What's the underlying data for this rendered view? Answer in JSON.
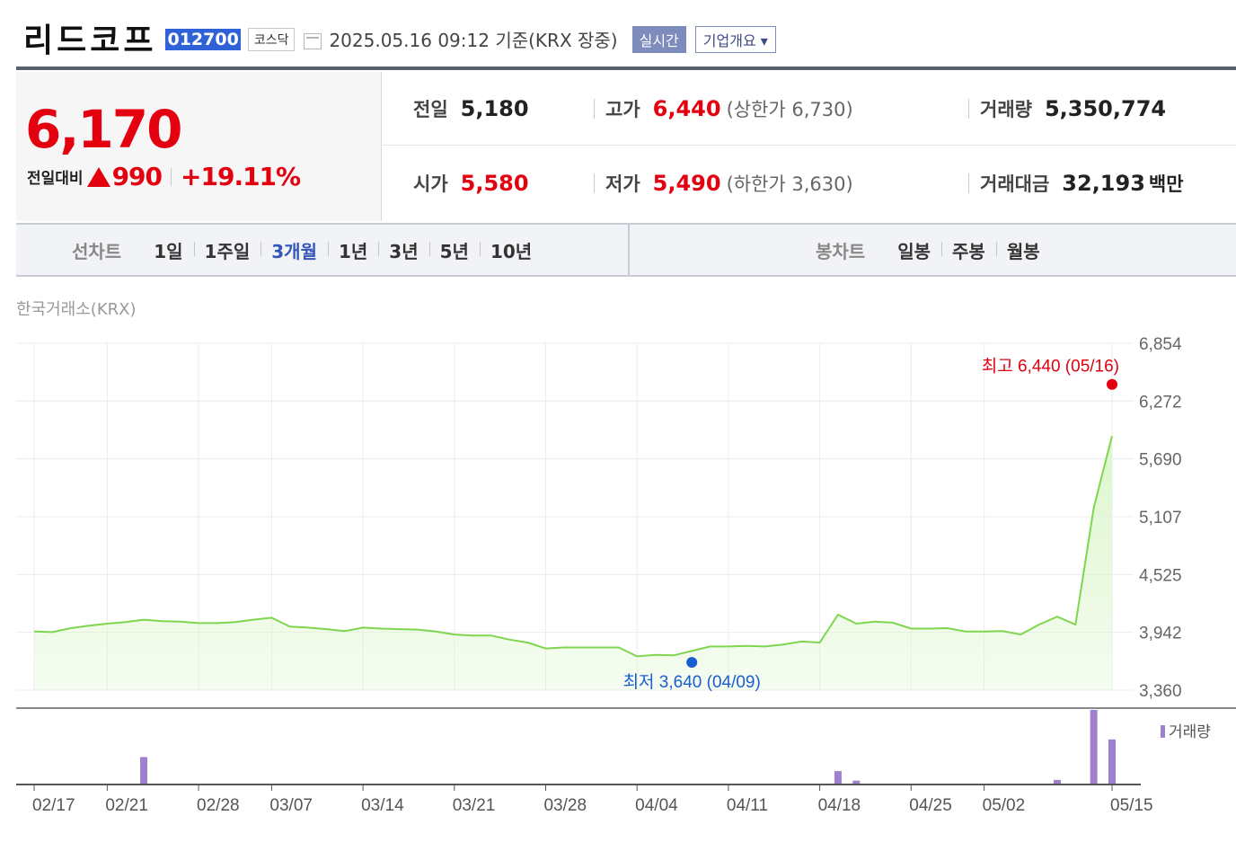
{
  "header": {
    "company": "리드코프",
    "code": "012700",
    "market": "코스닥",
    "datetime": "2025.05.16 09:12",
    "basis": "기준(KRX 장중)",
    "realtime_button": "실시간",
    "overview_button": "기업개요 ▾",
    "calendar_icon": "calendar-icon"
  },
  "price": {
    "current": "6,170",
    "change_label": "전일대비",
    "change_amount": "990",
    "change_pct": "+19.11%",
    "direction": "up",
    "color": "#e3000f"
  },
  "stats": {
    "prev_label": "전일",
    "prev": "5,180",
    "open_label": "시가",
    "open": "5,580",
    "high_label": "고가",
    "high": "6,440",
    "upper_limit": "(상한가 6,730)",
    "low_label": "저가",
    "low": "5,490",
    "lower_limit": "(하한가 3,630)",
    "volume_label": "거래량",
    "volume": "5,350,774",
    "value_label": "거래대금",
    "value": "32,193",
    "value_unit": "백만"
  },
  "tabs": {
    "line_title": "선차트",
    "line": [
      "1일",
      "1주일",
      "3개월",
      "1년",
      "3년",
      "5년",
      "10년"
    ],
    "line_active": "3개월",
    "candle_title": "봉차트",
    "candle": [
      "일봉",
      "주봉",
      "월봉"
    ]
  },
  "chart_source": "한국거래소(KRX)",
  "chart_data": {
    "type": "area",
    "ylim": [
      3360,
      6854
    ],
    "yticks": [
      "6,854",
      "6,272",
      "5,690",
      "5,107",
      "4,525",
      "3,942",
      "3,360"
    ],
    "xtick_labels": [
      "02/17",
      "02/21",
      "02/28",
      "03/07",
      "03/14",
      "03/21",
      "03/28",
      "04/04",
      "04/11",
      "04/18",
      "04/25",
      "05/02",
      "05/15"
    ],
    "xtick_index": [
      0,
      4,
      9,
      13,
      18,
      23,
      28,
      33,
      38,
      43,
      48,
      52,
      59
    ],
    "values": [
      3950,
      3945,
      3985,
      4010,
      4030,
      4045,
      4070,
      4055,
      4050,
      4035,
      4035,
      4045,
      4070,
      4090,
      4000,
      3990,
      3975,
      3955,
      3990,
      3980,
      3975,
      3970,
      3950,
      3920,
      3910,
      3910,
      3870,
      3840,
      3780,
      3790,
      3790,
      3790,
      3790,
      3700,
      3715,
      3710,
      3755,
      3800,
      3800,
      3805,
      3800,
      3820,
      3850,
      3840,
      4120,
      4030,
      4050,
      4040,
      3980,
      3980,
      3985,
      3950,
      3950,
      3955,
      3920,
      4020,
      4100,
      4020,
      5200,
      5920
    ],
    "high_label": "최고 6,440 (05/16)",
    "high_value": 6440,
    "low_label": "최저 3,640 (04/09)",
    "low_value": 3640,
    "low_index": 36,
    "volume_label": "거래량",
    "volume": [
      0,
      0,
      0,
      0,
      0,
      0,
      0.36,
      0,
      0,
      0,
      0,
      0,
      0,
      0,
      0,
      0,
      0,
      0,
      0,
      0,
      0,
      0,
      0,
      0,
      0,
      0,
      0,
      0,
      0,
      0,
      0,
      0,
      0,
      0,
      0,
      0,
      0,
      0,
      0,
      0,
      0,
      0,
      0,
      0,
      0.17,
      0.04,
      0,
      0,
      0,
      0,
      0,
      0,
      0,
      0,
      0,
      0,
      0.05,
      0,
      1.0,
      0.6
    ],
    "line_color": "#7ed64f",
    "fill_color": "#d9f5c8",
    "volume_color": "#9f80cf"
  }
}
